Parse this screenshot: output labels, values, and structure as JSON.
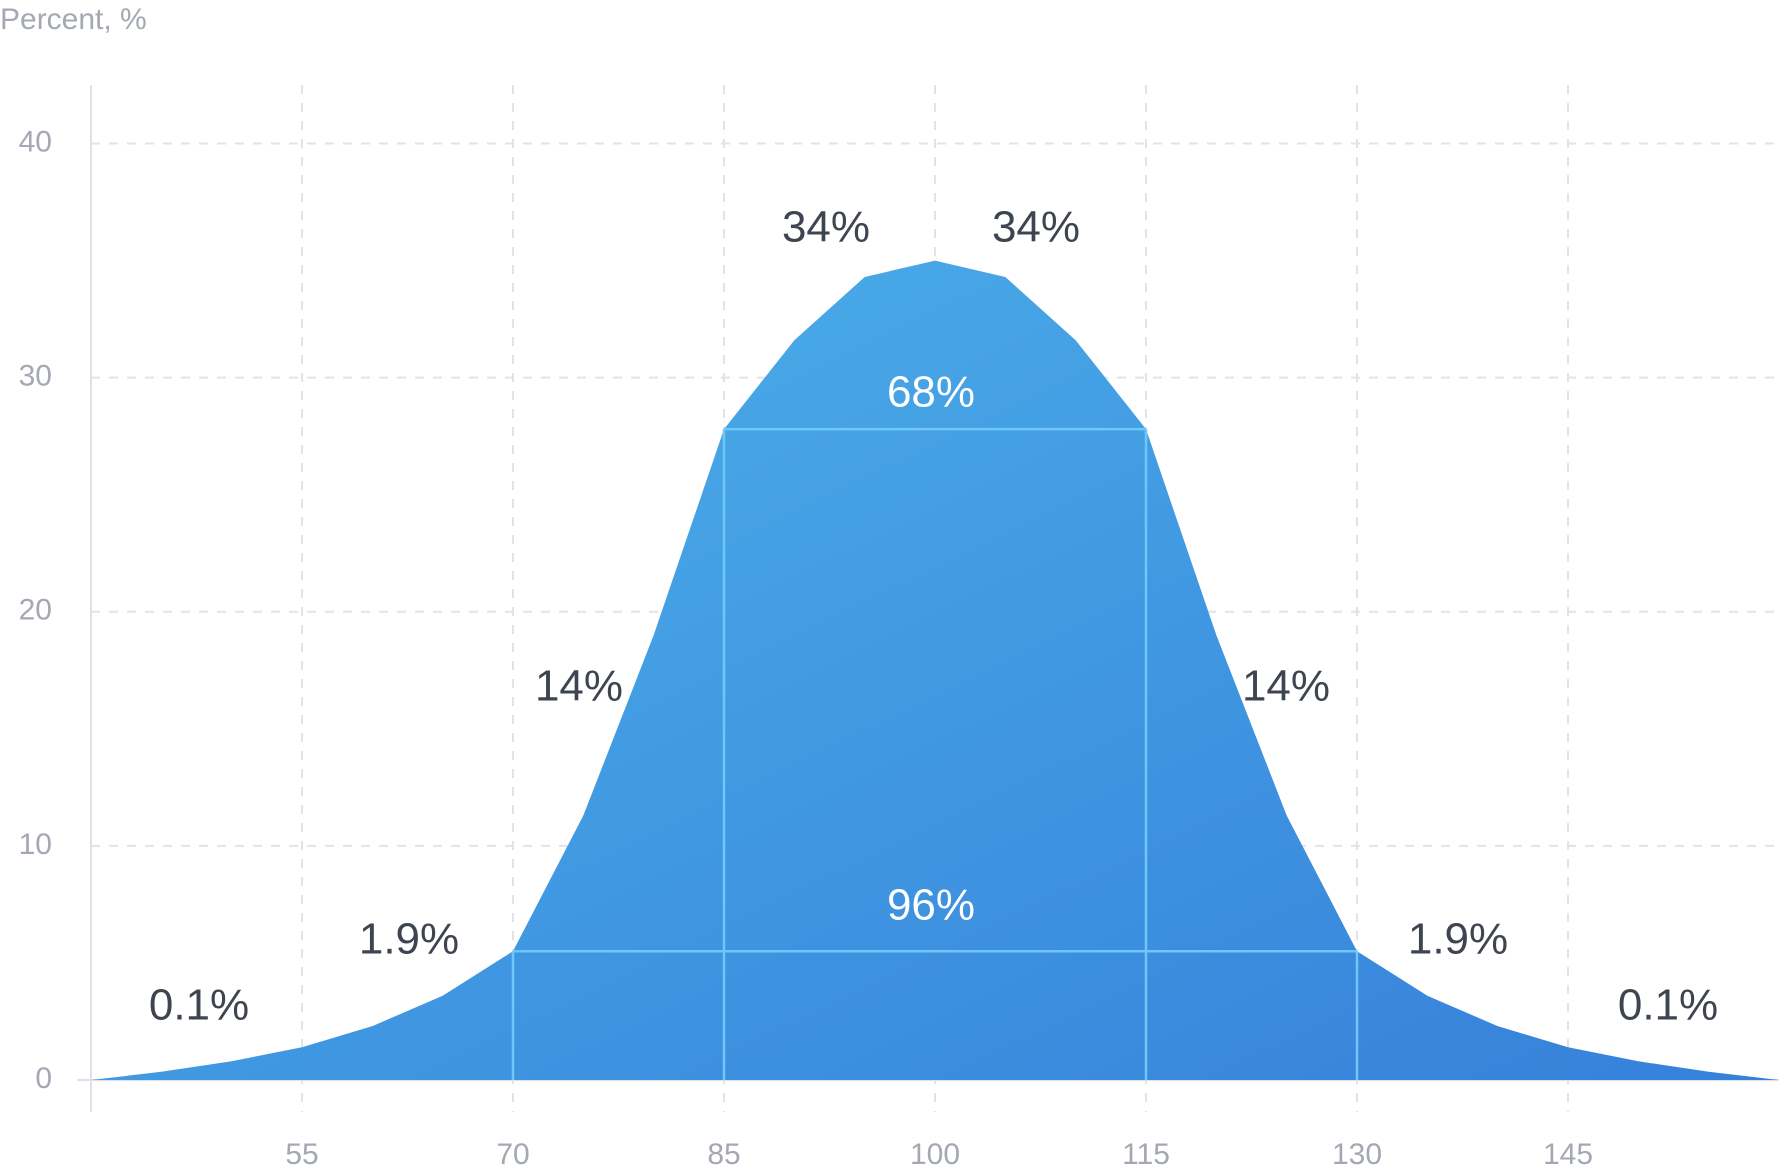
{
  "chart_data": {
    "type": "area",
    "y_axis_label": "Percent, %",
    "x": [
      40,
      45,
      50,
      55,
      60,
      65,
      70,
      75,
      80,
      85,
      90,
      95,
      100,
      105,
      110,
      115,
      120,
      125,
      130,
      135,
      140,
      145,
      150,
      155,
      160
    ],
    "values": [
      0,
      0.35,
      0.8,
      1.4,
      2.3,
      3.6,
      5.5,
      11.3,
      19,
      27.8,
      31.6,
      34.3,
      35,
      34.3,
      31.6,
      27.8,
      19,
      11.3,
      5.5,
      3.6,
      2.3,
      1.4,
      0.8,
      0.35,
      0
    ],
    "colors": [
      "#4db3ea",
      "#3680da"
    ],
    "reference_lines": [
      {
        "x": [
          85,
          115
        ],
        "y": 27.8
      },
      {
        "x": [
          70,
          130
        ],
        "y": 5.5
      }
    ],
    "reference_color": "#6ec6fb",
    "annotations": [
      "34%",
      "34%",
      "68%",
      "14%",
      "14%",
      "96%",
      "1.9%",
      "1.9%",
      "0.1%",
      "0.1%"
    ],
    "xlim": [
      40,
      160
    ],
    "ylim": [
      0,
      42.5
    ],
    "xticks": [
      55,
      70,
      85,
      100,
      115,
      130,
      145
    ],
    "yticks": [
      0,
      10,
      20,
      30,
      40
    ],
    "grid": true
  }
}
